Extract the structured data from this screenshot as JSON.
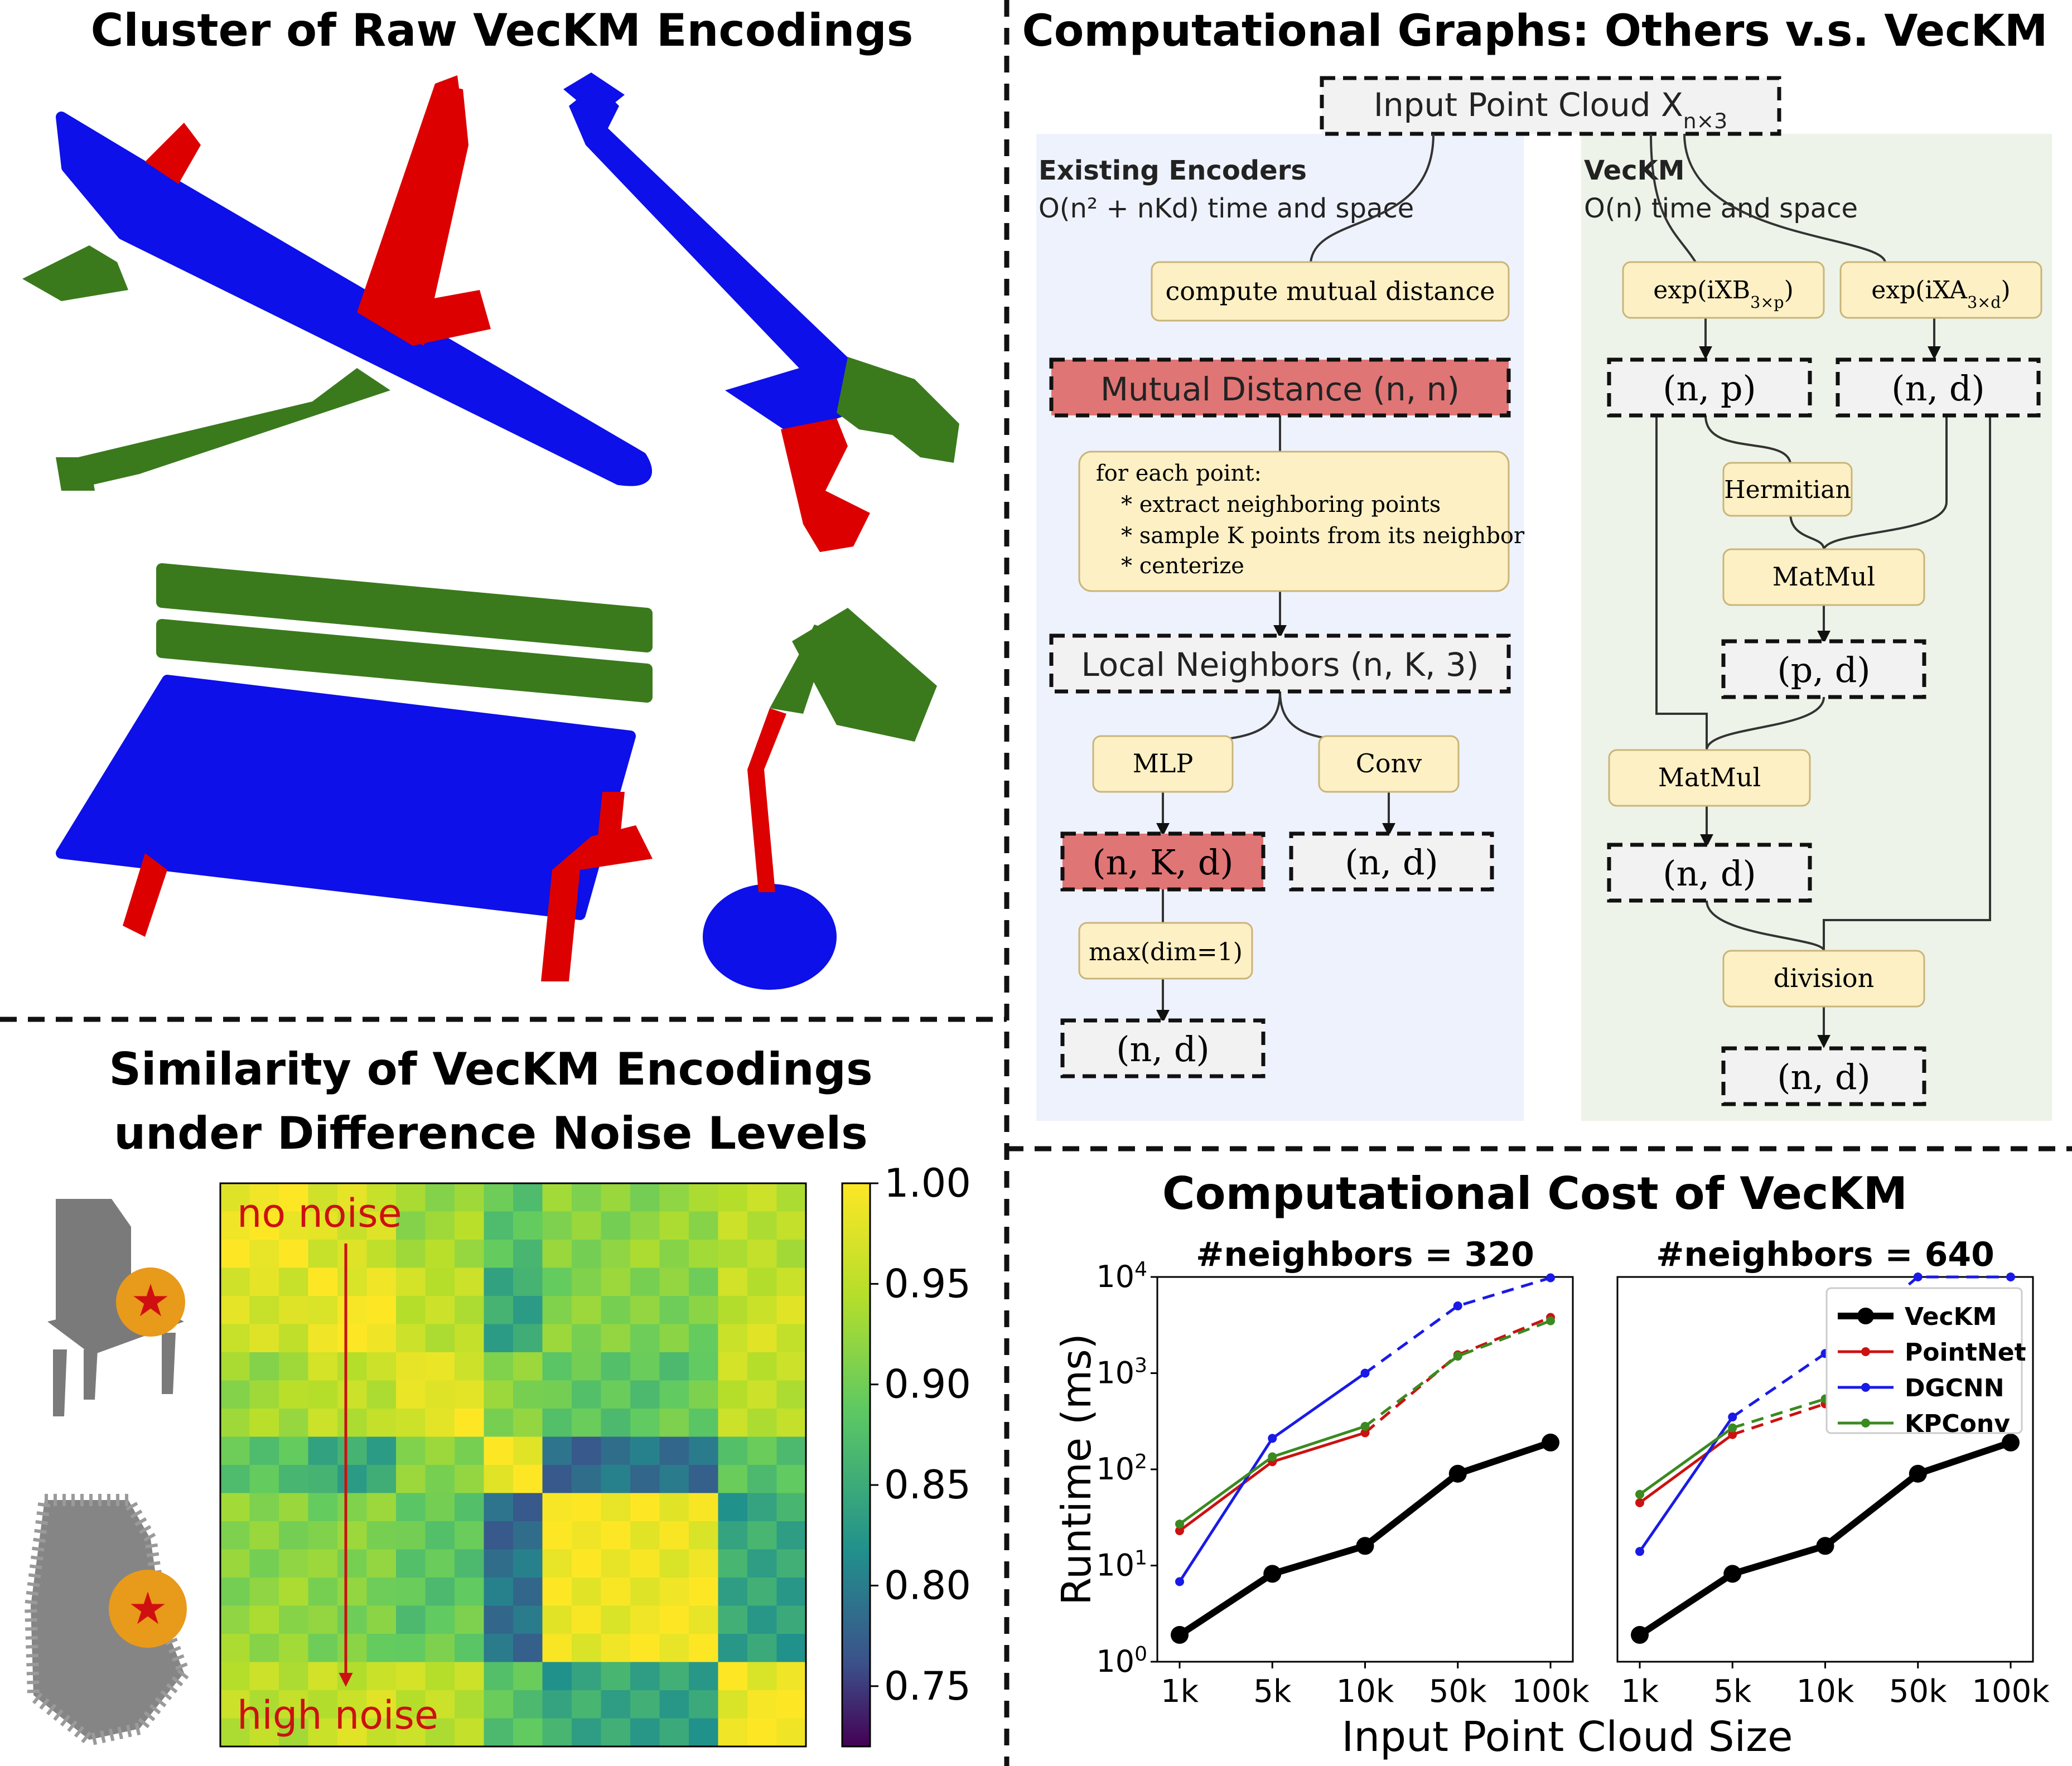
{
  "panels": {
    "clusters": {
      "title": "Cluster of Raw VecKM Encodings"
    },
    "graph": {
      "title": "Computational Graphs: Others v.s. VecKM",
      "input": "Input Point Cloud X_{n×3}",
      "existing": {
        "title": "Existing Encoders",
        "complexity": "O(n² + nKd) time and space",
        "compute": "compute mutual distance",
        "mutual": "Mutual Distance (n, n)",
        "loop_lines": [
          "for each point:",
          "* extract neighboring points",
          "* sample K points from its neighbor",
          "* centerize"
        ],
        "local": "Local Neighbors (n, K, 3)",
        "mlp": "MLP",
        "conv": "Conv",
        "nkd": "(n, K, d)",
        "nd_conv": "(n, d)",
        "max": "max(dim=1)",
        "nd_out": "(n, d)"
      },
      "veckm": {
        "title": "VecKM",
        "complexity": "O(n) time and space",
        "expB": "exp(iXB_{3×p})",
        "expA": "exp(iXA_{3×d})",
        "np": "(n, p)",
        "nd1": "(n, d)",
        "hermitian": "Hermitian",
        "matmul1": "MatMul",
        "pd": "(p, d)",
        "matmul2": "MatMul",
        "nd2": "(n, d)",
        "division": "division",
        "nd_out": "(n, d)"
      }
    },
    "similarity": {
      "title_line1": "Similarity of VecKM Encodings",
      "title_line2": "under Difference Noise Levels",
      "no_noise": "no noise",
      "high_noise": "high noise",
      "colorbar_ticks": [
        "1.00",
        "0.95",
        "0.90",
        "0.85",
        "0.80",
        "0.75"
      ]
    },
    "cost": {
      "title": "Computational Cost of VecKM"
    }
  },
  "chart_data": [
    {
      "type": "line",
      "title": "#neighbors = 320",
      "x": [
        "1k",
        "5k",
        "10k",
        "50k",
        "100k"
      ],
      "ylabel": "Runtime (ms)",
      "xlabel": "Input Point Cloud Size",
      "yscale": "log",
      "ylim": [
        1,
        10000
      ],
      "series": [
        {
          "name": "VecKM",
          "color": "#000000",
          "values": [
            1.9,
            8.2,
            16,
            90,
            190
          ]
        },
        {
          "name": "PointNet",
          "color": "#cc1111",
          "values": [
            23,
            120,
            240,
            1550,
            3800
          ],
          "dashed_from_index": 2
        },
        {
          "name": "DGCNN",
          "color": "#1a1ae6",
          "values": [
            6.8,
            210,
            1000,
            5000,
            9800
          ],
          "dashed_from_index": 2
        },
        {
          "name": "KPConv",
          "color": "#3a8a20",
          "values": [
            27,
            135,
            280,
            1500,
            3500
          ],
          "dashed_from_index": 2
        }
      ]
    },
    {
      "type": "line",
      "title": "#neighbors = 640",
      "x": [
        "1k",
        "5k",
        "10k",
        "50k",
        "100k"
      ],
      "yscale": "log",
      "ylim": [
        1,
        10000
      ],
      "legend": "top-right",
      "series": [
        {
          "name": "VecKM",
          "color": "#000000",
          "values": [
            1.9,
            8.2,
            16,
            90,
            190
          ]
        },
        {
          "name": "PointNet",
          "color": "#cc1111",
          "values": [
            45,
            230,
            480,
            2700,
            6000
          ],
          "dashed_from_index": 1
        },
        {
          "name": "DGCNN",
          "color": "#1a1ae6",
          "values": [
            14,
            350,
            1600,
            10000,
            10000
          ],
          "dashed_from_index": 1
        },
        {
          "name": "KPConv",
          "color": "#3a8a20",
          "values": [
            55,
            270,
            540,
            2900,
            6500
          ],
          "dashed_from_index": 1
        }
      ]
    }
  ],
  "heatmap": {
    "colorbar_range": [
      0.72,
      1.0
    ],
    "block_boundaries": [
      0,
      3,
      6,
      9,
      11,
      17,
      20
    ],
    "block_values": [
      [
        0.99,
        0.97,
        0.93,
        0.88,
        0.92,
        0.95
      ],
      [
        0.97,
        0.99,
        0.95,
        0.86,
        0.91,
        0.96
      ],
      [
        0.93,
        0.95,
        0.98,
        0.91,
        0.89,
        0.95
      ],
      [
        0.88,
        0.86,
        0.91,
        0.99,
        0.8,
        0.89
      ],
      [
        0.92,
        0.91,
        0.89,
        0.8,
        0.99,
        0.85
      ],
      [
        0.95,
        0.96,
        0.95,
        0.89,
        0.85,
        0.99
      ]
    ]
  }
}
